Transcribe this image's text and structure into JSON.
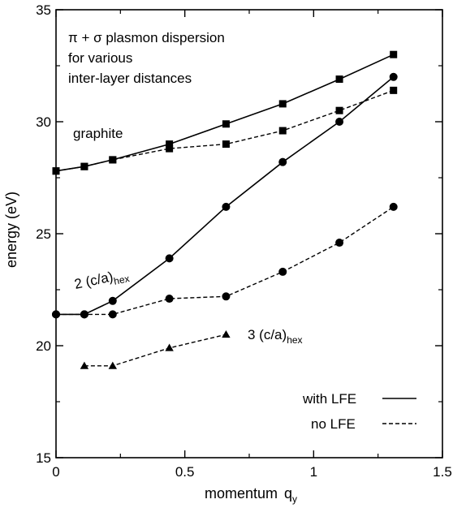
{
  "chart_data": {
    "type": "line",
    "title_lines": [
      "π + σ  plasmon dispersion",
      "for various",
      "inter-layer distances"
    ],
    "xlabel": "momentum",
    "xlabel_var": "q",
    "xlabel_sub": "y",
    "ylabel": "energy (eV)",
    "xlim": [
      0,
      1.5
    ],
    "ylim": [
      15,
      35
    ],
    "xticks": [
      0,
      0.5,
      1,
      1.5
    ],
    "xtick_labels": [
      "0",
      "0.5",
      "1",
      "1.5"
    ],
    "yticks": [
      15,
      20,
      25,
      30,
      35
    ],
    "ytick_labels": [
      "15",
      "20",
      "25",
      "30",
      "35"
    ],
    "grid": false,
    "legend_position": "bottom-right",
    "legend": [
      {
        "label": "with LFE",
        "dash": "solid"
      },
      {
        "label": "no LFE",
        "dash": "dashed"
      }
    ],
    "annotations": [
      {
        "text": "graphite",
        "sub": ""
      },
      {
        "text": "2 (c/a)",
        "sub": "hex"
      },
      {
        "text": "3 (c/a)",
        "sub": "hex"
      }
    ],
    "series": [
      {
        "group": "graphite",
        "lfe": "with LFE",
        "marker": "square",
        "x": [
          0,
          0.11,
          0.22,
          0.44,
          0.66,
          0.88,
          1.1,
          1.31
        ],
        "y": [
          27.8,
          28.0,
          28.3,
          29.0,
          29.9,
          30.8,
          31.9,
          33.0
        ]
      },
      {
        "group": "graphite",
        "lfe": "no LFE",
        "marker": "square",
        "x": [
          0,
          0.11,
          0.22,
          0.44,
          0.66,
          0.88,
          1.1,
          1.31
        ],
        "y": [
          27.8,
          28.0,
          28.3,
          28.8,
          29.0,
          29.6,
          30.5,
          31.4
        ]
      },
      {
        "group": "2 (c/a)hex",
        "lfe": "with LFE",
        "marker": "circle",
        "x": [
          0,
          0.11,
          0.22,
          0.44,
          0.66,
          0.88,
          1.1,
          1.31
        ],
        "y": [
          21.4,
          21.4,
          22.0,
          23.9,
          26.2,
          28.2,
          30.0,
          32.0
        ]
      },
      {
        "group": "2 (c/a)hex",
        "lfe": "no LFE",
        "marker": "circle",
        "x": [
          0,
          0.11,
          0.22,
          0.44,
          0.66,
          0.88,
          1.1,
          1.31
        ],
        "y": [
          21.4,
          21.4,
          21.4,
          22.1,
          22.2,
          23.3,
          24.6,
          26.2
        ]
      },
      {
        "group": "3 (c/a)hex",
        "lfe": "no LFE",
        "marker": "triangle",
        "x": [
          0.11,
          0.22,
          0.44,
          0.66
        ],
        "y": [
          19.1,
          19.1,
          19.9,
          20.5
        ]
      }
    ]
  }
}
